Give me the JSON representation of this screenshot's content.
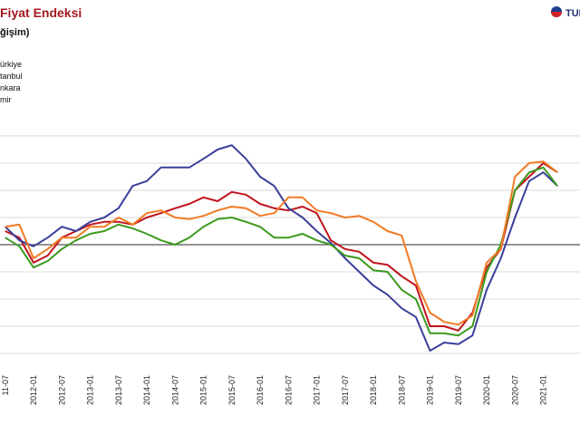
{
  "chart_data": {
    "type": "line",
    "title": "Fiyat Endeksi",
    "subtitle": "ğişim)",
    "logo": "TUR",
    "categories": [
      "11-07",
      null,
      "2012-01",
      null,
      "2012-07",
      null,
      "2013-01",
      null,
      "2013-07",
      null,
      "2014-01",
      null,
      "2014-07",
      null,
      "2015-01",
      null,
      "2015-07",
      null,
      "2016-01",
      null,
      "2016-07",
      null,
      "2017-01",
      null,
      "2017-07",
      null,
      "2018-01",
      null,
      "2018-07",
      null,
      "2019-01",
      null,
      "2019-07",
      null,
      "2020-01",
      null,
      "2020-07",
      null,
      "2021-01",
      null
    ],
    "series": [
      {
        "name": "ürkiye",
        "color": "#c0141c",
        "values": [
          2.5,
          1.3,
          -3.3,
          -2,
          1.3,
          2.5,
          3.7,
          4.2,
          4.2,
          3.7,
          5,
          5.8,
          6.7,
          7.5,
          8.7,
          8,
          9.7,
          9.2,
          7.5,
          6.7,
          6.3,
          7,
          5.8,
          0.8,
          -0.8,
          -1.3,
          -3.3,
          -3.7,
          -5.8,
          -7.5,
          -15,
          -15,
          -15.8,
          -12.5,
          -4.2,
          -0.8,
          10,
          12.5,
          15,
          13.3
        ]
      },
      {
        "name": "tanbul",
        "color": "#3a3f9a",
        "values": [
          3.3,
          0.8,
          -0.3,
          1.3,
          3.3,
          2.5,
          4.2,
          5,
          6.7,
          10.8,
          11.7,
          14.2,
          14.2,
          14.2,
          15.8,
          17.5,
          18.3,
          15.8,
          12.5,
          10.8,
          6.7,
          5,
          2.5,
          0.3,
          -2.5,
          -5,
          -7.5,
          -9.2,
          -11.7,
          -13.3,
          -19.5,
          -18,
          -18.3,
          -16.7,
          -8.3,
          -2.5,
          5,
          11.7,
          13.3,
          10.8
        ]
      },
      {
        "name": "nkara",
        "color": "#3c9a1e",
        "values": [
          1.3,
          -0.3,
          -4.2,
          -3,
          -0.8,
          0.8,
          2,
          2.5,
          3.7,
          3,
          2,
          0.8,
          0,
          1.3,
          3.3,
          4.7,
          5,
          4.2,
          3.3,
          1.3,
          1.3,
          2,
          0.8,
          0,
          -2,
          -2.5,
          -4.7,
          -5,
          -8.3,
          -10,
          -16.3,
          -16.3,
          -16.7,
          -15,
          -5,
          0,
          10,
          13.3,
          14.2,
          10.8
        ]
      },
      {
        "name": "mir",
        "color": "#f07b24",
        "values": [
          3.3,
          3.7,
          -2.5,
          -0.8,
          1.3,
          1.3,
          3.3,
          3.3,
          5,
          3.7,
          5.8,
          6.3,
          5,
          4.7,
          5.3,
          6.3,
          7,
          6.7,
          5.3,
          5.8,
          8.7,
          8.7,
          6.3,
          5.8,
          5,
          5.3,
          4.2,
          2.5,
          1.7,
          -6.7,
          -12.5,
          -14.2,
          -14.7,
          -13,
          -3.3,
          -0.8,
          12.5,
          15,
          15.3,
          13.3
        ]
      }
    ],
    "ylim": [
      -25,
      25
    ],
    "yticks": [
      -20,
      -15,
      -10,
      -5,
      0,
      5,
      10,
      15,
      20
    ],
    "grid": true
  }
}
